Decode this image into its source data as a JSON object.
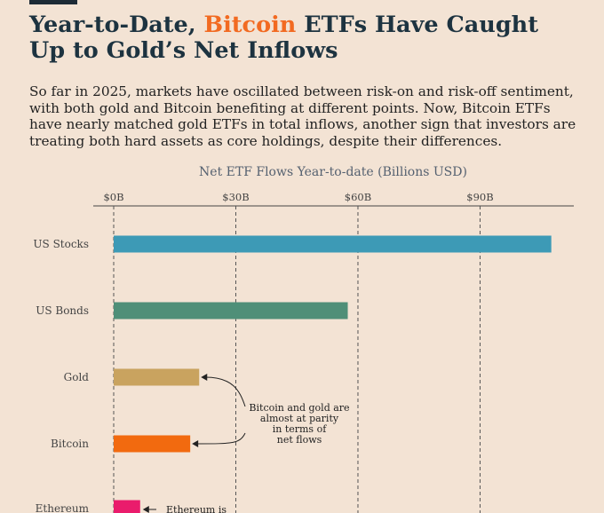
{
  "header": {
    "title_part1": "Year-to-Date, ",
    "title_highlight": "Bitcoin",
    "title_part2": " ETFs Have Caught Up to Gold’s Net Inflows",
    "intro": "So far in 2025, markets have oscillated between risk-on and risk-off sentiment, with both gold and Bitcoin benefiting at different points. Now, Bitcoin ETFs have nearly matched gold ETFs in total inflows, another sign that investors are treating both hard assets as core holdings, despite their differences."
  },
  "colors": {
    "accent": "#f26a21",
    "background": "#f3e3d4"
  },
  "chart_data": {
    "type": "bar",
    "orientation": "horizontal",
    "title": "Net ETF Flows Year-to-date (Billions USD)",
    "x_ticks": [
      "$0B",
      "$30B",
      "$60B",
      "$90B"
    ],
    "x_tick_values": [
      0,
      30,
      60,
      90
    ],
    "xlim": [
      0,
      110
    ],
    "grid": true,
    "categories": [
      "US Stocks",
      "US Bonds",
      "Gold",
      "Bitcoin",
      "Ethereum"
    ],
    "values": [
      107.5,
      57.5,
      21,
      18.8,
      6.5
    ],
    "bar_colors": [
      "#3d9ab6",
      "#4f8f78",
      "#c9a35f",
      "#f26a0f",
      "#ea1c6c"
    ],
    "annotations": [
      {
        "text": [
          "Bitcoin and gold are",
          "almost at parity",
          "in terms of",
          "net flows"
        ],
        "targets": [
          "Gold",
          "Bitcoin"
        ]
      },
      {
        "text": [
          "Ethereum is"
        ],
        "targets": [
          "Ethereum"
        ]
      }
    ]
  }
}
